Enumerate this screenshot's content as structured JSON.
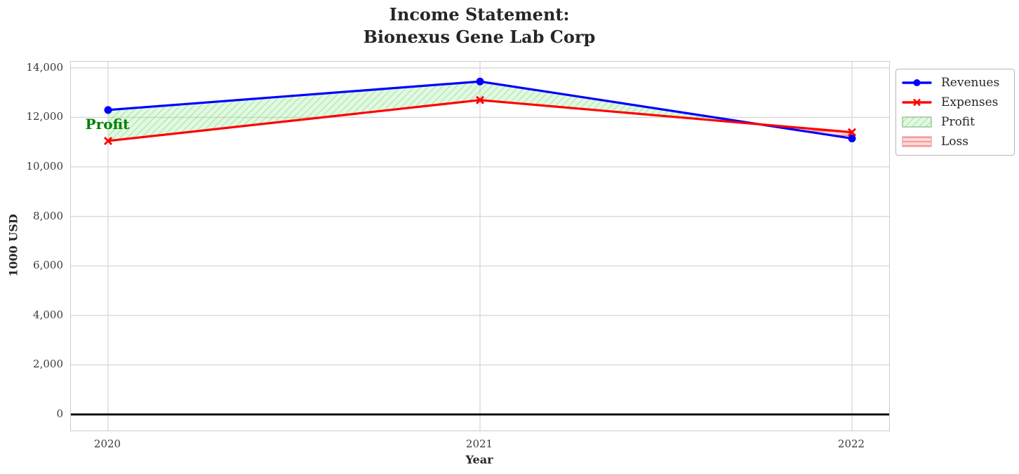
{
  "title": "Income Statement:\nBionexus Gene Lab Corp",
  "chart_data": {
    "type": "line",
    "title": "Income Statement: Bionexus Gene Lab Corp",
    "xlabel": "Year",
    "ylabel": "1000 USD",
    "x": [
      2020,
      2021,
      2022
    ],
    "xticklabels": [
      "2020",
      "2021",
      "2022"
    ],
    "yticks": [
      0,
      2000,
      4000,
      6000,
      8000,
      10000,
      12000,
      14000
    ],
    "xlim": [
      2019.9,
      2022.1
    ],
    "ylim": [
      -650,
      14250
    ],
    "grid": true,
    "zero_line": true,
    "legend_position": "outside-upper-right",
    "series": [
      {
        "name": "Revenues",
        "color": "#0000ff",
        "marker": "circle",
        "values": [
          12300,
          13450,
          11150
        ]
      },
      {
        "name": "Expenses",
        "color": "#ff0000",
        "marker": "x",
        "values": [
          11050,
          12700,
          11400
        ]
      }
    ],
    "fills": [
      {
        "name": "Profit",
        "sign": 1,
        "face": "rgba(144,238,144,0.28)",
        "hatch_id": "hatchProfit",
        "edge": "#85bb85",
        "hatch_style": "diagonal"
      },
      {
        "name": "Loss",
        "sign": -1,
        "face": "rgba(255,120,120,0.28)",
        "hatch_id": "hatchLoss",
        "edge": "#e9a0a0",
        "hatch_style": "horizontal"
      }
    ],
    "annotation": {
      "text": "Profit",
      "x": 2020,
      "y": 11700,
      "color": "#008000"
    },
    "colors": {
      "grid": "#d7d7d7",
      "axis_border": "#cccccc",
      "zero_line": "#000000",
      "title_text": "#262626",
      "tick_text": "#3a3a3a"
    }
  }
}
